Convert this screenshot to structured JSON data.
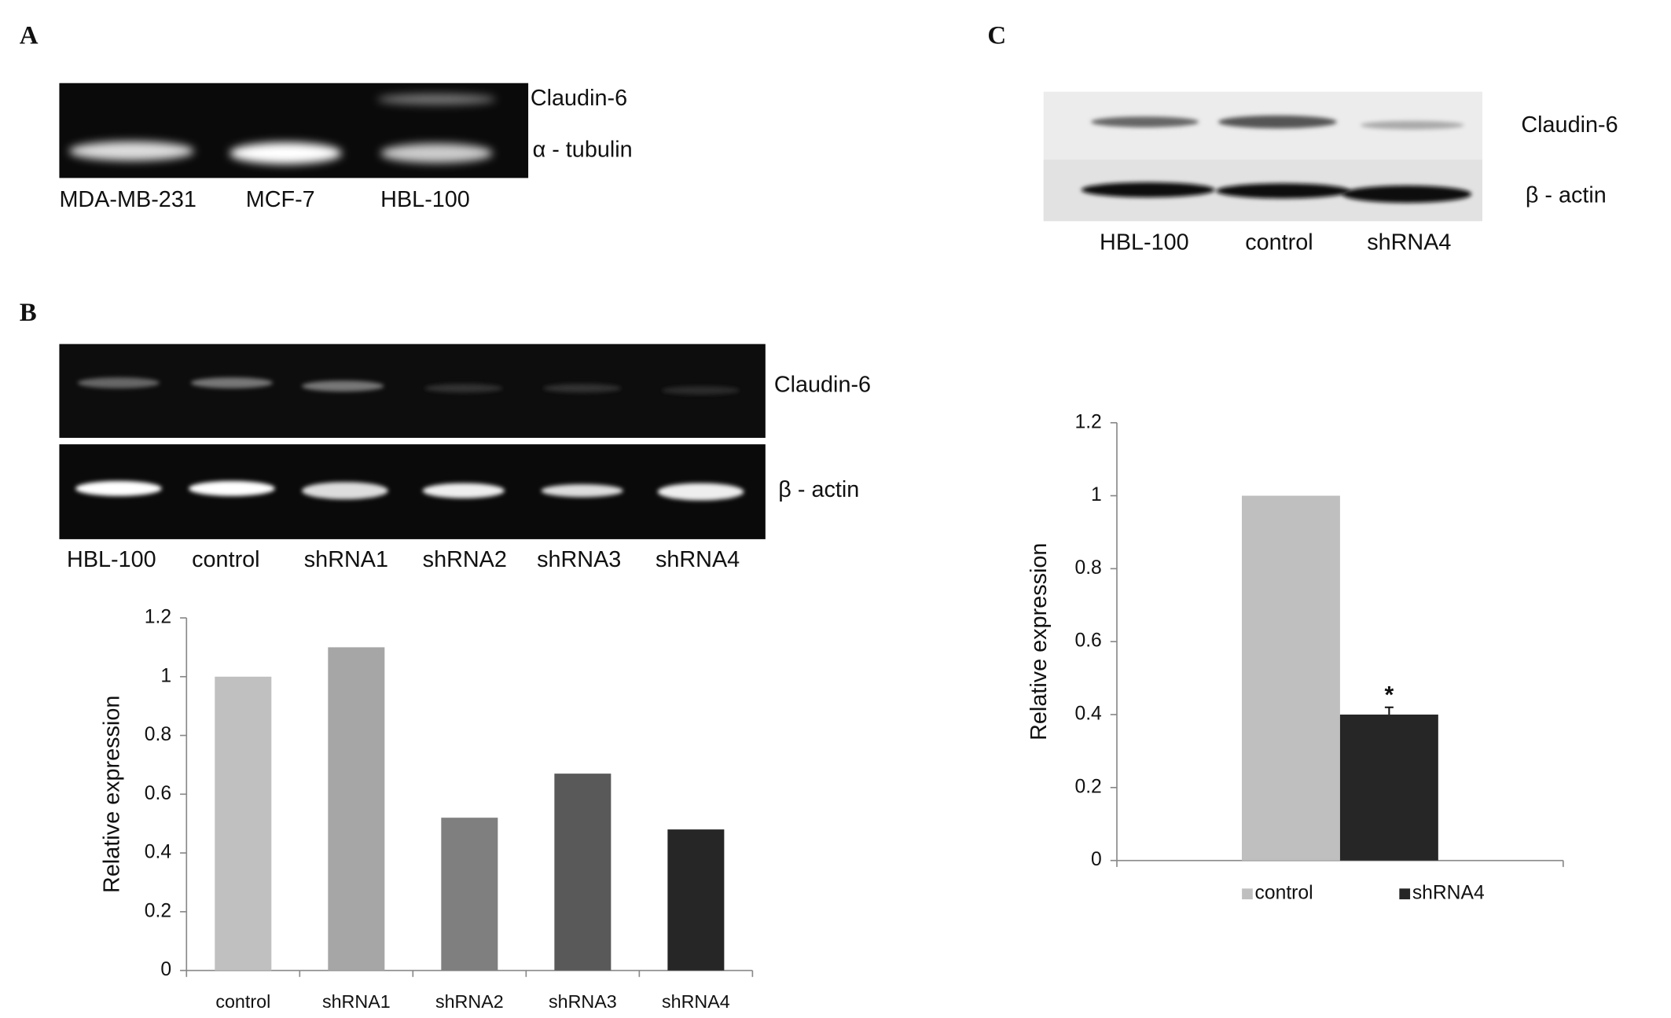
{
  "panel_a": {
    "label": "A",
    "bands": [
      "Claudin-6",
      "α - tubulin"
    ],
    "lanes": [
      "MDA-MB-231",
      "MCF-7",
      "HBL-100"
    ]
  },
  "panel_b": {
    "label": "B",
    "bands": [
      "Claudin-6",
      "β - actin"
    ],
    "lanes": [
      "HBL-100",
      "control",
      "shRNA1",
      "shRNA2",
      "shRNA3",
      "shRNA4"
    ]
  },
  "panel_c": {
    "label": "C",
    "bands": [
      "Claudin-6",
      "β - actin"
    ],
    "lanes": [
      "HBL-100",
      "control",
      "shRNA4"
    ]
  },
  "chart_data": [
    {
      "type": "bar",
      "y_label": "Relative expression",
      "categories": [
        "control",
        "shRNA1",
        "shRNA2",
        "shRNA3",
        "shRNA4"
      ],
      "values": [
        1,
        1.1,
        0.52,
        0.67,
        0.48
      ],
      "colors": [
        "#c0c0c0",
        "#a6a6a6",
        "#7f7f7f",
        "#595959",
        "#262626"
      ],
      "ylim": [
        0,
        1.2
      ],
      "yticks": [
        0,
        0.2,
        0.4,
        0.6,
        0.8,
        1,
        1.2
      ]
    },
    {
      "type": "bar",
      "y_label": "Relative expression",
      "categories": [
        null
      ],
      "series": [
        {
          "name": "control",
          "color": "#bfbfbf",
          "values": [
            1
          ]
        },
        {
          "name": "shRNA4",
          "color": "#262626",
          "values": [
            0.4
          ],
          "errors": [
            0.02
          ]
        }
      ],
      "annotation": "*",
      "legend": "bottom",
      "ylim": [
        0,
        1.2
      ],
      "yticks": [
        0,
        0.2,
        0.4,
        0.6,
        0.8,
        1,
        1.2
      ]
    }
  ]
}
